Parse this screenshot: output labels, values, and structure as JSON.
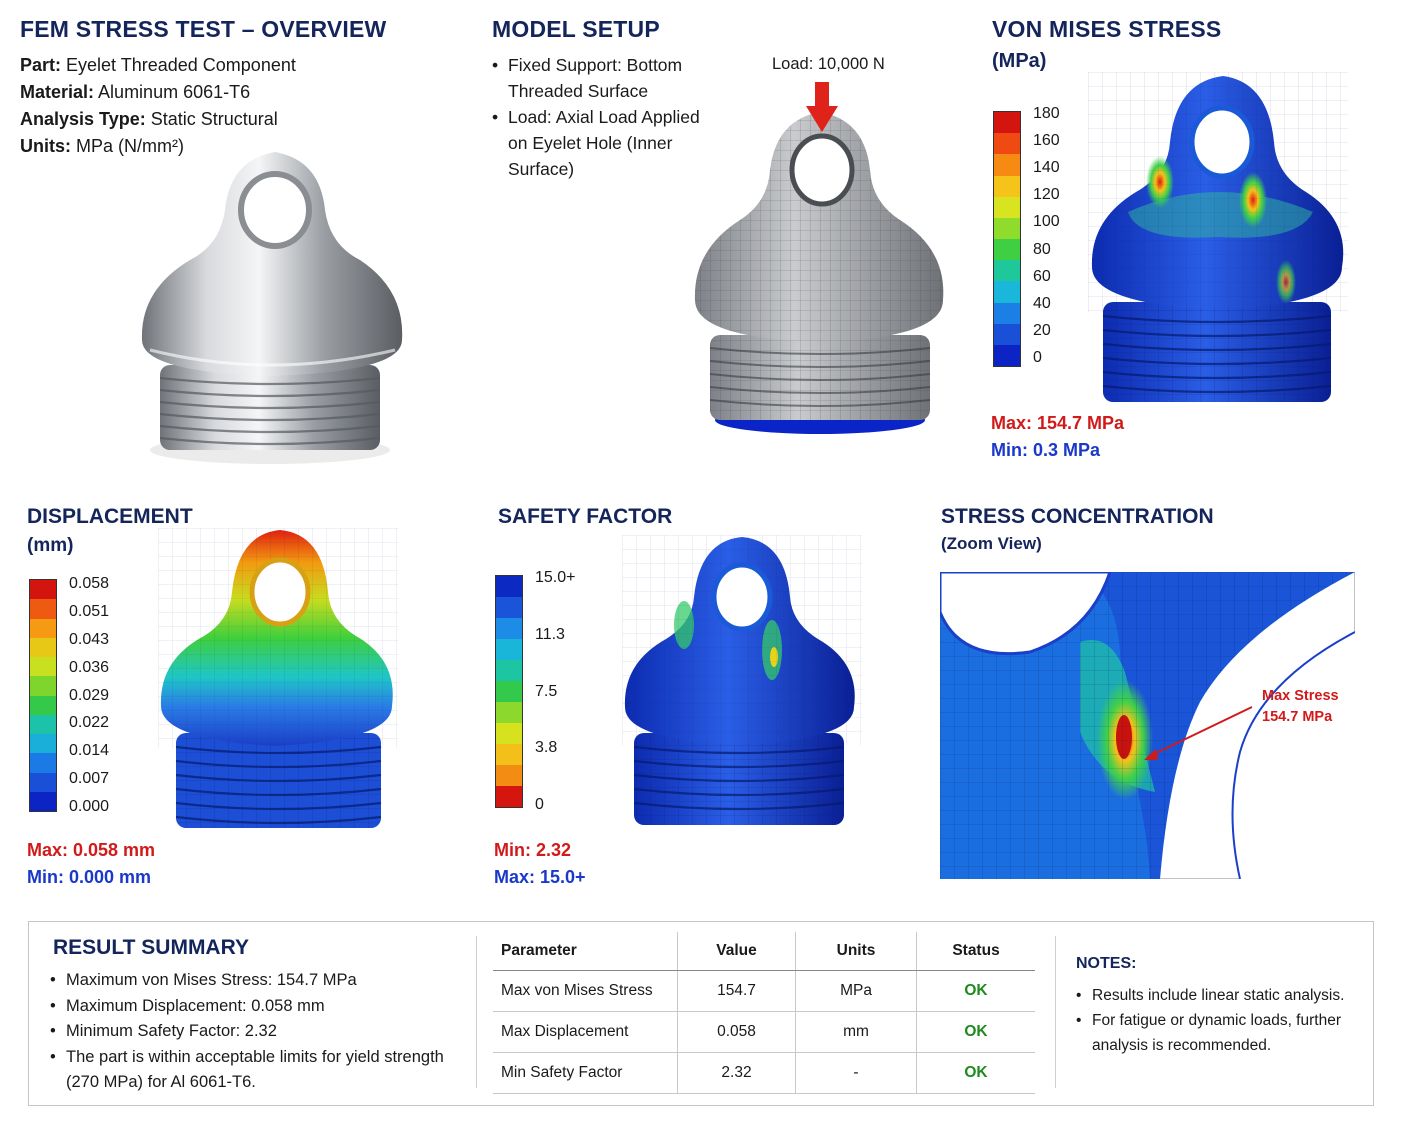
{
  "overview": {
    "title": "FEM STRESS TEST – OVERVIEW",
    "rows": [
      {
        "label": "Part:",
        "value": "Eyelet Threaded Component"
      },
      {
        "label": "Material:",
        "value": "Aluminum 6061-T6"
      },
      {
        "label": "Analysis Type:",
        "value": "Static Structural"
      },
      {
        "label": "Units:",
        "value": "MPa (N/mm²)"
      }
    ]
  },
  "model_setup": {
    "title": "MODEL SETUP",
    "bullets": [
      "Fixed Support: Bottom Threaded Surface",
      "Load: Axial Load Applied on Eyelet Hole (Inner Surface)"
    ],
    "load_label": "Load: 10,000 N"
  },
  "von_mises": {
    "title": "VON MISES STRESS",
    "unit": "(MPa)",
    "ticks": [
      "180",
      "160",
      "140",
      "120",
      "100",
      "80",
      "60",
      "40",
      "20",
      "0"
    ],
    "max": "Max: 154.7 MPa",
    "min": "Min: 0.3 MPa"
  },
  "displacement": {
    "title": "DISPLACEMENT",
    "unit": "(mm)",
    "ticks": [
      "0.058",
      "0.051",
      "0.043",
      "0.036",
      "0.029",
      "0.022",
      "0.014",
      "0.007",
      "0.000"
    ],
    "max": "Max: 0.058 mm",
    "min": "Min: 0.000 mm"
  },
  "safety_factor": {
    "title": "SAFETY FACTOR",
    "ticks": [
      "15.0+",
      "11.3",
      "7.5",
      "3.8",
      "0"
    ],
    "min": "Min: 2.32",
    "max": "Max: 15.0+"
  },
  "concentration": {
    "title": "STRESS CONCENTRATION",
    "subtitle": "(Zoom View)",
    "callout_line1": "Max Stress",
    "callout_line2": "154.7 MPa"
  },
  "summary": {
    "title": "RESULT SUMMARY",
    "bullets": [
      "Maximum von Mises Stress: 154.7 MPa",
      "Maximum Displacement: 0.058 mm",
      "Minimum Safety Factor: 2.32",
      "The part is within acceptable limits for yield strength (270 MPa) for Al 6061-T6."
    ],
    "table": {
      "headers": [
        "Parameter",
        "Value",
        "Units",
        "Status"
      ],
      "rows": [
        [
          "Max von Mises Stress",
          "154.7",
          "MPa",
          "OK"
        ],
        [
          "Max Displacement",
          "0.058",
          "mm",
          "OK"
        ],
        [
          "Min Safety Factor",
          "2.32",
          "-",
          "OK"
        ]
      ]
    },
    "notes_title": "NOTES:",
    "notes": [
      "Results include linear static analysis.",
      "For fatigue or dynamic loads, further analysis is recommended."
    ]
  },
  "colors": {
    "heading": "#13255a",
    "max_red": "#d11a1a",
    "min_blue": "#1b39c9",
    "ok_green": "#1d8a1d"
  }
}
